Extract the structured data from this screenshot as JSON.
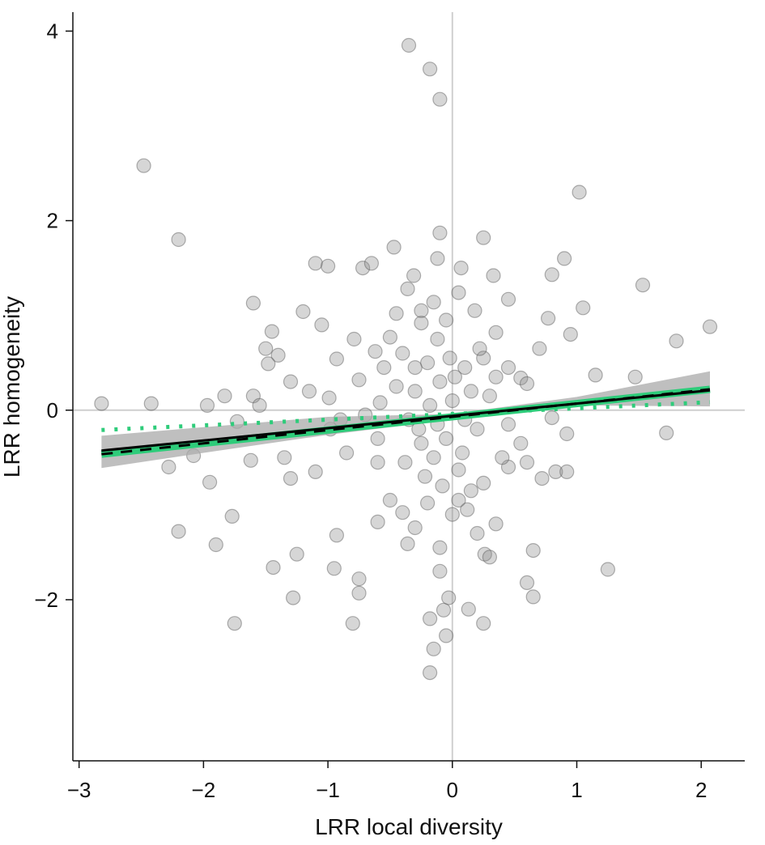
{
  "chart_data": {
    "type": "scatter",
    "title": "",
    "xlabel": "LRR local diversity",
    "ylabel": "LRR homogeneity",
    "xlim": [
      -3.05,
      2.35
    ],
    "ylim": [
      -3.7,
      4.2
    ],
    "xticks": [
      -3,
      -2,
      -1,
      0,
      1,
      2
    ],
    "yticks": [
      -2,
      0,
      2,
      4
    ],
    "xtick_labels": [
      "−3",
      "−2",
      "−1",
      "0",
      "1",
      "2"
    ],
    "ytick_labels": [
      "−2",
      "0",
      "2",
      "4"
    ],
    "reference_lines": {
      "x": 0,
      "y": 0
    },
    "grid": false,
    "legend": false,
    "colors": {
      "points": "#8a8a8a",
      "points_edge": "#555555",
      "fit_line": "#000000",
      "fit_band": "#a9a9a9",
      "accent": "#2ecc7a",
      "reference": "#cfcfcf"
    },
    "fit": {
      "x_range": [
        -2.82,
        2.07
      ],
      "solid_line": {
        "intercept": -0.06,
        "slope": 0.13
      },
      "dashed_line": {
        "intercept": -0.07,
        "slope": 0.14
      },
      "band": {
        "x": [
          -2.82,
          -2.0,
          -1.0,
          0.0,
          1.0,
          2.07
        ],
        "lower": [
          -0.61,
          -0.45,
          -0.26,
          -0.1,
          0.05,
          0.04
        ],
        "upper": [
          -0.27,
          -0.18,
          -0.07,
          -0.04,
          0.14,
          0.41
        ]
      },
      "accent_line": {
        "intercept": -0.07,
        "slope": 0.14
      },
      "accent_dotted": {
        "intercept": -0.04,
        "slope": 0.06
      }
    },
    "points": [
      [
        -0.35,
        3.85
      ],
      [
        -0.18,
        3.6
      ],
      [
        -0.1,
        3.28
      ],
      [
        -2.48,
        2.58
      ],
      [
        1.02,
        2.3
      ],
      [
        -2.2,
        1.8
      ],
      [
        -0.1,
        1.87
      ],
      [
        0.25,
        1.82
      ],
      [
        -0.47,
        1.72
      ],
      [
        0.9,
        1.6
      ],
      [
        -1.1,
        1.55
      ],
      [
        -1.0,
        1.52
      ],
      [
        -0.72,
        1.5
      ],
      [
        -0.12,
        1.6
      ],
      [
        0.07,
        1.5
      ],
      [
        1.53,
        1.32
      ],
      [
        0.33,
        1.42
      ],
      [
        -0.65,
        1.55
      ],
      [
        -0.31,
        1.42
      ],
      [
        0.8,
        1.43
      ],
      [
        -1.6,
        1.13
      ],
      [
        -1.2,
        1.04
      ],
      [
        0.45,
        1.17
      ],
      [
        1.05,
        1.08
      ],
      [
        -1.05,
        0.9
      ],
      [
        -1.45,
        0.83
      ],
      [
        2.07,
        0.88
      ],
      [
        -0.79,
        0.75
      ],
      [
        0.77,
        0.97
      ],
      [
        0.95,
        0.8
      ],
      [
        1.8,
        0.73
      ],
      [
        -1.5,
        0.65
      ],
      [
        -1.4,
        0.58
      ],
      [
        -1.48,
        0.49
      ],
      [
        -0.93,
        0.54
      ],
      [
        0.7,
        0.65
      ],
      [
        -1.3,
        0.3
      ],
      [
        1.15,
        0.37
      ],
      [
        1.47,
        0.35
      ],
      [
        -2.82,
        0.07
      ],
      [
        -2.42,
        0.07
      ],
      [
        -1.97,
        0.05
      ],
      [
        -1.83,
        0.15
      ],
      [
        -1.6,
        0.15
      ],
      [
        -1.55,
        0.05
      ],
      [
        -1.15,
        0.2
      ],
      [
        -0.99,
        0.13
      ],
      [
        0.55,
        0.34
      ],
      [
        -0.98,
        -0.2
      ],
      [
        -1.73,
        -0.12
      ],
      [
        -1.62,
        -0.53
      ],
      [
        -2.08,
        -0.48
      ],
      [
        -2.28,
        -0.6
      ],
      [
        -1.95,
        -0.76
      ],
      [
        -1.35,
        -0.5
      ],
      [
        -1.1,
        -0.65
      ],
      [
        -1.3,
        -0.72
      ],
      [
        0.83,
        -0.65
      ],
      [
        0.92,
        -0.65
      ],
      [
        0.72,
        -0.72
      ],
      [
        0.45,
        -0.6
      ],
      [
        0.92,
        -0.25
      ],
      [
        1.72,
        -0.24
      ],
      [
        -1.77,
        -1.12
      ],
      [
        -2.2,
        -1.28
      ],
      [
        -1.9,
        -1.42
      ],
      [
        -1.44,
        -1.66
      ],
      [
        -1.25,
        -1.52
      ],
      [
        -0.93,
        -1.32
      ],
      [
        -1.28,
        -1.98
      ],
      [
        -0.95,
        -1.67
      ],
      [
        -0.75,
        -1.78
      ],
      [
        -0.75,
        -1.93
      ],
      [
        -1.75,
        -2.25
      ],
      [
        -0.8,
        -2.25
      ],
      [
        0.65,
        -1.48
      ],
      [
        0.6,
        -1.82
      ],
      [
        0.65,
        -1.97
      ],
      [
        1.25,
        -1.68
      ],
      [
        0.26,
        -1.52
      ],
      [
        -0.03,
        -1.98
      ],
      [
        -0.07,
        -2.11
      ],
      [
        -0.18,
        -2.2
      ],
      [
        0.13,
        -2.1
      ],
      [
        0.25,
        -2.25
      ],
      [
        -0.05,
        -2.38
      ],
      [
        -0.15,
        -2.52
      ],
      [
        -0.18,
        -2.77
      ],
      [
        -0.1,
        -1.7
      ],
      [
        -0.1,
        -1.45
      ],
      [
        -0.36,
        -1.41
      ],
      [
        -0.3,
        -1.24
      ],
      [
        -0.6,
        -1.18
      ],
      [
        -0.5,
        -0.95
      ],
      [
        -0.4,
        -1.08
      ],
      [
        -0.2,
        -0.98
      ],
      [
        0.0,
        -1.1
      ],
      [
        0.2,
        -1.3
      ],
      [
        0.3,
        -1.55
      ],
      [
        0.35,
        -1.2
      ],
      [
        0.15,
        -0.85
      ],
      [
        0.05,
        -0.63
      ],
      [
        0.25,
        -0.77
      ],
      [
        -0.85,
        -0.45
      ],
      [
        -0.6,
        -0.55
      ],
      [
        0.55,
        -0.35
      ],
      [
        0.45,
        -0.15
      ],
      [
        0.8,
        -0.08
      ],
      [
        -0.75,
        0.32
      ],
      [
        -0.58,
        0.08
      ],
      [
        -0.62,
        0.62
      ],
      [
        -0.5,
        0.77
      ],
      [
        -0.45,
        1.02
      ],
      [
        -0.36,
        1.28
      ],
      [
        -0.25,
        0.92
      ],
      [
        -0.15,
        1.14
      ],
      [
        0.05,
        1.24
      ],
      [
        0.18,
        1.05
      ],
      [
        0.35,
        0.82
      ],
      [
        0.25,
        0.55
      ],
      [
        0.45,
        0.45
      ],
      [
        0.6,
        0.28
      ],
      [
        -0.3,
        0.2
      ],
      [
        -0.2,
        0.5
      ],
      [
        -0.1,
        0.3
      ],
      [
        0.0,
        0.1
      ],
      [
        0.1,
        -0.1
      ],
      [
        -0.05,
        -0.3
      ],
      [
        -0.15,
        -0.5
      ],
      [
        0.1,
        0.45
      ],
      [
        -0.45,
        0.25
      ],
      [
        -0.35,
        -0.1
      ],
      [
        -0.25,
        -0.35
      ],
      [
        0.15,
        0.2
      ],
      [
        0.3,
        0.15
      ],
      [
        0.2,
        -0.2
      ],
      [
        -0.12,
        0.75
      ],
      [
        -0.05,
        0.95
      ],
      [
        -0.4,
        0.6
      ],
      [
        -0.22,
        -0.7
      ],
      [
        -0.08,
        -0.8
      ],
      [
        0.05,
        -0.95
      ],
      [
        0.4,
        -0.5
      ],
      [
        0.35,
        0.35
      ],
      [
        -0.6,
        -0.3
      ],
      [
        -0.7,
        -0.05
      ],
      [
        0.02,
        0.35
      ],
      [
        -0.02,
        0.55
      ],
      [
        -0.3,
        0.45
      ],
      [
        -0.18,
        0.05
      ],
      [
        -0.27,
        -0.2
      ],
      [
        0.08,
        -0.45
      ],
      [
        -0.12,
        -0.15
      ],
      [
        0.22,
        0.65
      ],
      [
        -0.55,
        0.45
      ],
      [
        -0.9,
        -0.1
      ],
      [
        0.6,
        -0.55
      ],
      [
        -0.38,
        -0.55
      ],
      [
        0.12,
        -1.05
      ],
      [
        -0.25,
        1.05
      ]
    ]
  }
}
